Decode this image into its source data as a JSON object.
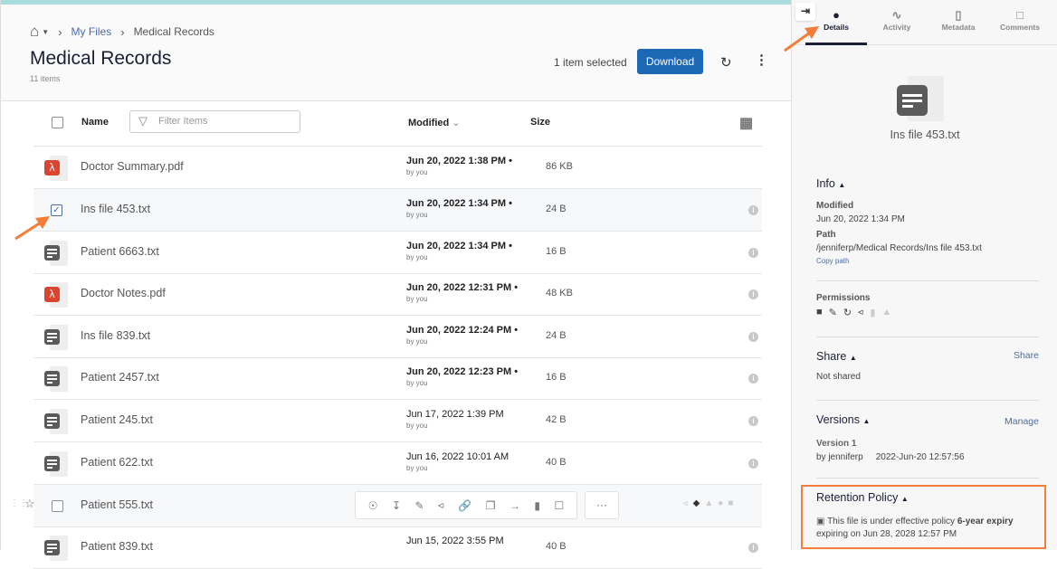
{
  "breadcrumb": {
    "home_icon": "home-icon",
    "items": [
      "My Files",
      "Medical Records"
    ]
  },
  "header": {
    "title": "Medical Records",
    "count": "11 items",
    "selection": "1 item selected",
    "download_label": "Download",
    "refresh_icon": "refresh-icon",
    "more_icon": "kebab-icon"
  },
  "columns": {
    "name": "Name",
    "filter_placeholder": "Filter Items",
    "modified": "Modified",
    "size": "Size",
    "grid_icon": "grid-view-icon"
  },
  "files": [
    {
      "name": "Doctor Summary.pdf",
      "type": "pdf",
      "modified": "Jun 20, 2022 1:38 PM",
      "by": "by you",
      "size": "86 KB",
      "recent": true
    },
    {
      "name": "Ins file 453.txt",
      "type": "txt",
      "modified": "Jun 20, 2022 1:34 PM",
      "by": "by you",
      "size": "24 B",
      "recent": true,
      "selected": true
    },
    {
      "name": "Patient 6663.txt",
      "type": "txt",
      "modified": "Jun 20, 2022 1:34 PM",
      "by": "by you",
      "size": "16 B",
      "recent": true
    },
    {
      "name": "Doctor Notes.pdf",
      "type": "pdf",
      "modified": "Jun 20, 2022 12:31 PM",
      "by": "by you",
      "size": "48 KB",
      "recent": true
    },
    {
      "name": "Ins file 839.txt",
      "type": "txt",
      "modified": "Jun 20, 2022 12:24 PM",
      "by": "by you",
      "size": "24 B",
      "recent": true
    },
    {
      "name": "Patient 2457.txt",
      "type": "txt",
      "modified": "Jun 20, 2022 12:23 PM",
      "by": "by you",
      "size": "16 B",
      "recent": true
    },
    {
      "name": "Patient 245.txt",
      "type": "txt",
      "modified": "Jun 17, 2022 1:39 PM",
      "by": "by you",
      "size": "42 B"
    },
    {
      "name": "Patient 622.txt",
      "type": "txt",
      "modified": "Jun 16, 2022 10:01 AM",
      "by": "by you",
      "size": "40 B"
    },
    {
      "name": "Patient 555.txt",
      "type": "txt",
      "hover": true
    },
    {
      "name": "Patient 839.txt",
      "type": "txt",
      "modified": "Jun 15, 2022 3:55 PM",
      "by": "",
      "size": "40 B"
    }
  ],
  "row_actions": [
    "view-icon",
    "download-icon",
    "edit-icon",
    "share-icon",
    "link-icon",
    "copy-icon",
    "move-icon",
    "delete-icon",
    "lock-icon"
  ],
  "row_more": "···",
  "panel": {
    "tabs": [
      {
        "label": "Details",
        "icon": "info-icon",
        "active": true
      },
      {
        "label": "Activity",
        "icon": "activity-icon"
      },
      {
        "label": "Metadata",
        "icon": "clipboard-icon"
      },
      {
        "label": "Comments",
        "icon": "comment-icon"
      }
    ],
    "file_name": "Ins file 453.txt",
    "info": {
      "title": "Info",
      "modified_label": "Modified",
      "modified": "Jun 20, 2022 1:34 PM",
      "path_label": "Path",
      "path": "/jenniferp/Medical Records/Ins file 453.txt",
      "copy_path": "Copy path"
    },
    "permissions": {
      "title": "Permissions"
    },
    "share": {
      "title": "Share",
      "action": "Share",
      "status": "Not shared"
    },
    "versions": {
      "title": "Versions",
      "action": "Manage",
      "version": "Version 1",
      "by": "by jenniferp",
      "date": "2022-Jun-20 12:57:56"
    },
    "retention": {
      "title": "Retention Policy",
      "text": "This file is under effective policy",
      "policy": "6-year expiry",
      "expiry": "expiring on Jun 28, 2028 12:57 PM"
    }
  },
  "colors": {
    "accent": "#1c68b5",
    "annotation": "#f47d3a",
    "topbar": "#a8dde0"
  }
}
